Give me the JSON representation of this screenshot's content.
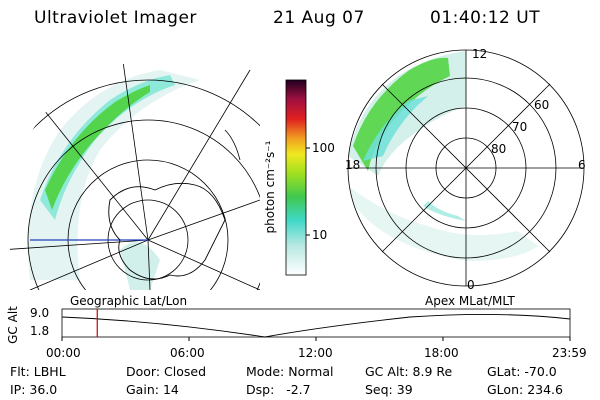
{
  "header": {
    "instrument": "Ultraviolet Imager",
    "date": "21 Aug 07",
    "time": "01:40:12 UT"
  },
  "colorbar": {
    "unit_label": "photon cm⁻²s⁻¹",
    "ticks": [
      "100",
      "10"
    ]
  },
  "polar_plot": {
    "mlt_labels": {
      "top": "12",
      "right": "6",
      "bottom": "0",
      "left": "18"
    },
    "lat_labels": [
      "60",
      "70",
      "80"
    ]
  },
  "timeline": {
    "y_axis_label": "GC Alt",
    "y_ticks": [
      "9.0",
      "1.8"
    ],
    "left_caption": "Geographic Lat/Lon",
    "right_caption": "Apex  MLat/MLT",
    "x_ticks": [
      "00:00",
      "06:00",
      "12:00",
      "18:00",
      "23:59"
    ],
    "current_time_fraction": 0.0694
  },
  "status": {
    "row1": [
      {
        "label": "Flt:",
        "value": "LBHL"
      },
      {
        "label": "Door:",
        "value": "Closed"
      },
      {
        "label": "Mode:",
        "value": "Normal"
      },
      {
        "label": "GC Alt:",
        "value": "8.9 Re"
      },
      {
        "label": "GLat:",
        "value": "-70.0"
      }
    ],
    "row2": [
      {
        "label": "IP:",
        "value": "36.0"
      },
      {
        "label": "Gain:",
        "value": "14"
      },
      {
        "label": "Dsp:",
        "value": "-2.7"
      },
      {
        "label": "Seq:",
        "value": "39"
      },
      {
        "label": "GLon:",
        "value": "234.6"
      }
    ]
  },
  "colors": {
    "aurora_green": "#4cd23c",
    "aurora_cyan": "#6fe0d8",
    "aurora_faint": "#c8ece6",
    "marker_red": "#cc0000",
    "latlon_blue": "#2040c0"
  }
}
